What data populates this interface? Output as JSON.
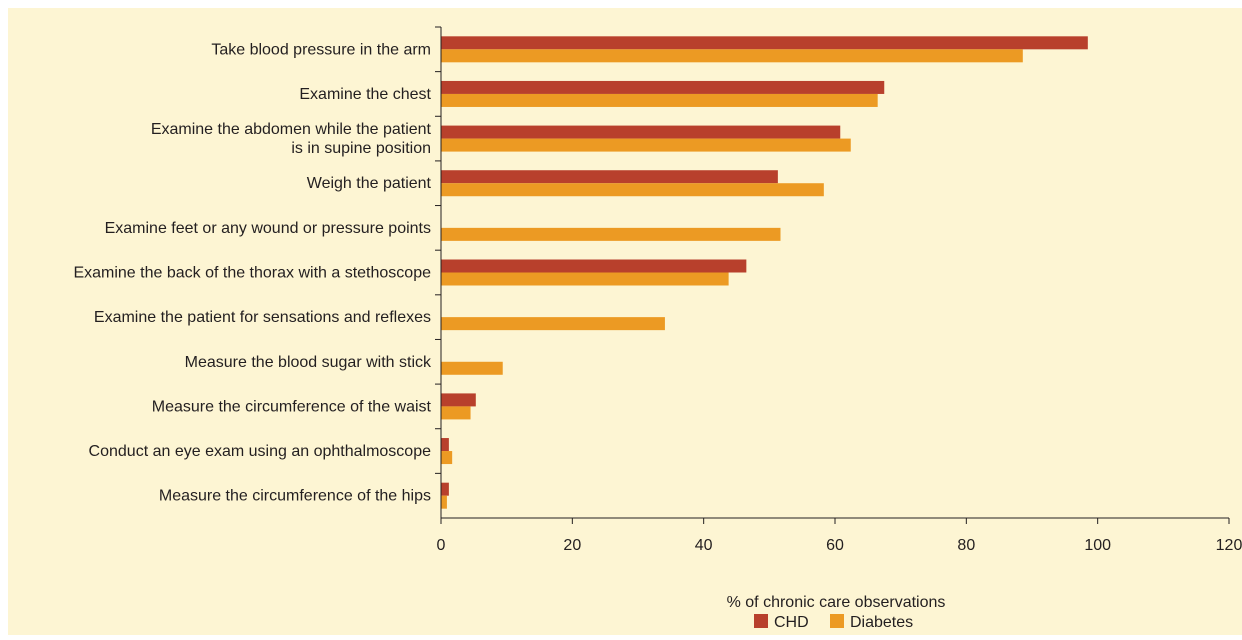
{
  "colors": {
    "panel_bg": "#fdf5d3",
    "chd": "#b8402c",
    "diabetes": "#ec9a23",
    "axis": "#231f20"
  },
  "chart_data": {
    "type": "bar",
    "orientation": "horizontal",
    "categories": [
      [
        "Take blood pressure in the arm"
      ],
      [
        "Examine the chest"
      ],
      [
        "Examine the abdomen while the patient",
        "is in supine position"
      ],
      [
        "Weigh the patient"
      ],
      [
        "Examine feet or any wound or pressure points"
      ],
      [
        "Examine the back of the thorax with a stethoscope"
      ],
      [
        "Examine the patient for sensations and reflexes"
      ],
      [
        "Measure the blood sugar with stick"
      ],
      [
        "Measure the circumference of the waist"
      ],
      [
        "Conduct an eye exam using an ophthalmoscope"
      ],
      [
        "Measure the circumference of the hips"
      ]
    ],
    "series": [
      {
        "name": "CHD",
        "color": "#b8402c",
        "values": [
          98.5,
          67.5,
          60.8,
          51.3,
          null,
          46.5,
          null,
          null,
          5.3,
          1.2,
          1.2
        ]
      },
      {
        "name": "Diabetes",
        "color": "#ec9a23",
        "values": [
          88.6,
          66.5,
          62.4,
          58.3,
          51.7,
          43.8,
          34.1,
          9.4,
          4.5,
          1.7,
          0.9
        ]
      }
    ],
    "xlabel": "% of chronic care observations",
    "ylabel": "",
    "title": "",
    "xlim": [
      0,
      120
    ],
    "xticks": [
      0,
      20,
      40,
      60,
      80,
      100,
      120
    ],
    "grid": false,
    "legend_position": "bottom-center"
  }
}
